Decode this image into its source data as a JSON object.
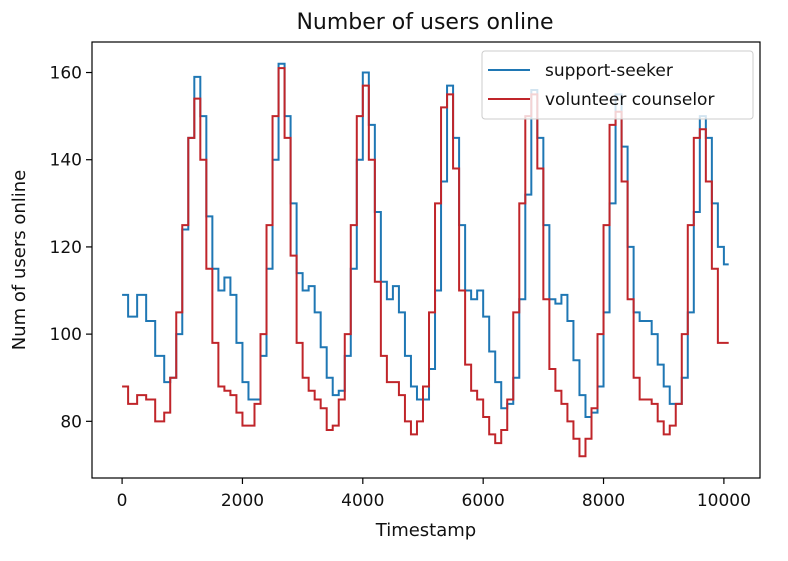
{
  "chart_data": {
    "type": "line",
    "title": "Number of users online",
    "xlabel": "Timestamp",
    "ylabel": "Num of users online",
    "xlim": [
      -500,
      10600
    ],
    "ylim": [
      67,
      167
    ],
    "xticks": [
      0,
      2000,
      4000,
      6000,
      8000,
      10000
    ],
    "yticks": [
      80,
      100,
      120,
      140,
      160
    ],
    "xtick_labels": [
      "0",
      "2000",
      "4000",
      "6000",
      "8000",
      "10000"
    ],
    "ytick_labels": [
      "80",
      "100",
      "120",
      "140",
      "160"
    ],
    "grid": false,
    "legend_position": "top-right",
    "series": [
      {
        "name": "support-seeker",
        "color": "#1f77b4",
        "step": true,
        "x": [
          0,
          100,
          250,
          400,
          550,
          700,
          800,
          900,
          1000,
          1100,
          1200,
          1300,
          1400,
          1500,
          1600,
          1700,
          1800,
          1900,
          2000,
          2100,
          2200,
          2300,
          2400,
          2500,
          2600,
          2700,
          2800,
          2900,
          3000,
          3100,
          3200,
          3300,
          3400,
          3500,
          3600,
          3700,
          3800,
          3900,
          4000,
          4100,
          4200,
          4300,
          4400,
          4500,
          4600,
          4700,
          4800,
          4900,
          5000,
          5100,
          5200,
          5300,
          5400,
          5500,
          5600,
          5700,
          5800,
          5900,
          6000,
          6100,
          6200,
          6300,
          6400,
          6500,
          6600,
          6700,
          6800,
          6900,
          7000,
          7100,
          7200,
          7300,
          7400,
          7500,
          7600,
          7700,
          7800,
          7900,
          8000,
          8100,
          8200,
          8300,
          8400,
          8500,
          8600,
          8700,
          8800,
          8900,
          9000,
          9100,
          9200,
          9300,
          9400,
          9500,
          9600,
          9700,
          9800,
          9900,
          10000,
          10080
        ],
        "y": [
          109,
          104,
          109,
          103,
          95,
          89,
          90,
          100,
          124,
          145,
          159,
          150,
          127,
          115,
          110,
          113,
          109,
          98,
          89,
          85,
          85,
          95,
          115,
          140,
          162,
          150,
          130,
          114,
          110,
          111,
          105,
          97,
          90,
          86,
          87,
          95,
          115,
          140,
          160,
          148,
          128,
          112,
          108,
          111,
          105,
          95,
          88,
          85,
          85,
          92,
          110,
          135,
          157,
          145,
          125,
          110,
          108,
          110,
          104,
          96,
          89,
          83,
          84,
          90,
          108,
          132,
          156,
          145,
          125,
          108,
          107,
          109,
          103,
          94,
          86,
          81,
          82,
          88,
          105,
          130,
          155,
          143,
          120,
          105,
          103,
          103,
          100,
          93,
          88,
          84,
          84,
          90,
          105,
          128,
          150,
          145,
          130,
          120,
          116,
          116
        ]
      },
      {
        "name": "volunteer counselor",
        "color": "#c0252a",
        "step": true,
        "x": [
          0,
          100,
          250,
          400,
          550,
          700,
          800,
          900,
          1000,
          1100,
          1200,
          1300,
          1400,
          1500,
          1600,
          1700,
          1800,
          1900,
          2000,
          2100,
          2200,
          2300,
          2400,
          2500,
          2600,
          2700,
          2800,
          2900,
          3000,
          3100,
          3200,
          3300,
          3400,
          3500,
          3600,
          3700,
          3800,
          3900,
          4000,
          4100,
          4200,
          4300,
          4400,
          4500,
          4600,
          4700,
          4800,
          4900,
          5000,
          5100,
          5200,
          5300,
          5400,
          5500,
          5600,
          5700,
          5800,
          5900,
          6000,
          6100,
          6200,
          6300,
          6400,
          6500,
          6600,
          6700,
          6800,
          6900,
          7000,
          7100,
          7200,
          7300,
          7400,
          7500,
          7600,
          7700,
          7800,
          7900,
          8000,
          8100,
          8200,
          8300,
          8400,
          8500,
          8600,
          8700,
          8800,
          8900,
          9000,
          9100,
          9200,
          9300,
          9400,
          9500,
          9600,
          9700,
          9800,
          9900,
          10000,
          10080
        ],
        "y": [
          88,
          84,
          86,
          85,
          80,
          82,
          90,
          105,
          125,
          145,
          154,
          140,
          115,
          98,
          88,
          87,
          86,
          82,
          79,
          79,
          84,
          100,
          125,
          150,
          161,
          145,
          118,
          98,
          90,
          87,
          85,
          83,
          78,
          79,
          85,
          100,
          125,
          150,
          157,
          140,
          112,
          95,
          89,
          89,
          86,
          80,
          77,
          80,
          88,
          105,
          130,
          152,
          155,
          138,
          110,
          93,
          87,
          85,
          81,
          77,
          75,
          78,
          85,
          105,
          130,
          150,
          155,
          138,
          108,
          92,
          87,
          84,
          80,
          76,
          72,
          76,
          83,
          100,
          125,
          148,
          151,
          135,
          108,
          90,
          85,
          85,
          84,
          80,
          77,
          79,
          84,
          100,
          125,
          145,
          147,
          135,
          115,
          98,
          98,
          98
        ]
      }
    ]
  }
}
